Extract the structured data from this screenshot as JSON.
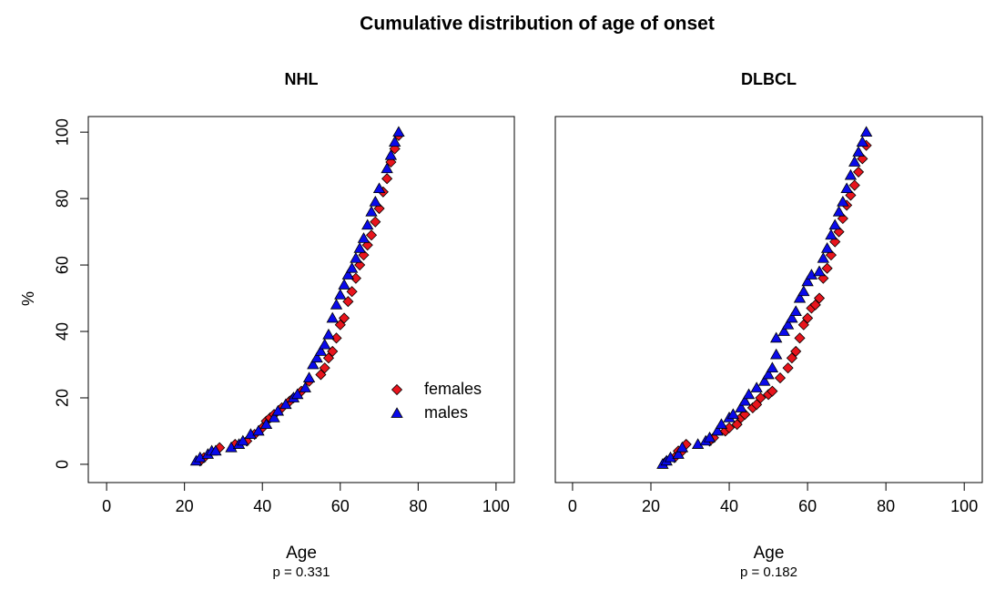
{
  "title": "Cumulative distribution of age of onset",
  "chart_data": [
    {
      "type": "scatter",
      "title": "NHL",
      "x_label": "Age",
      "y_label": "%",
      "annotation": "p = 0.331",
      "xlim": [
        -4.7,
        104.7
      ],
      "ylim": [
        -5.5,
        104.7
      ],
      "xticks": [
        0,
        20,
        40,
        60,
        80,
        100
      ],
      "yticks": [
        0,
        20,
        40,
        60,
        80,
        100
      ],
      "legend": "bottom-right",
      "series": [
        {
          "name": "females",
          "color": "#e8141c",
          "marker": "diamond",
          "x": [
            24,
            25,
            29,
            33,
            36,
            38,
            40,
            41,
            42,
            43,
            45,
            47,
            48,
            50,
            52,
            55,
            56,
            57,
            58,
            59,
            60,
            61,
            62,
            63,
            64,
            65,
            66,
            67,
            68,
            69,
            70,
            71,
            72,
            73,
            74,
            75
          ],
          "values": [
            1,
            2,
            5,
            6,
            7,
            9,
            11,
            13,
            14,
            15,
            17,
            19,
            20,
            22,
            25,
            27,
            29,
            32,
            34,
            38,
            42,
            44,
            49,
            52,
            56,
            60,
            63,
            66,
            69,
            73,
            77,
            82,
            86,
            91,
            95,
            99
          ]
        },
        {
          "name": "males",
          "color": "#0a0aeb",
          "marker": "triangle",
          "x": [
            23,
            24,
            26,
            27,
            28,
            32,
            34,
            35,
            37,
            39,
            41,
            43,
            44,
            46,
            48,
            49,
            51,
            52,
            53,
            54,
            55,
            56,
            57,
            58,
            59,
            60,
            61,
            62,
            63,
            64,
            65,
            66,
            67,
            68,
            69,
            70,
            72,
            73,
            74,
            75
          ],
          "values": [
            1,
            2,
            3,
            4,
            4,
            5,
            6,
            7,
            9,
            10,
            12,
            14,
            16,
            18,
            20,
            21,
            23,
            26,
            30,
            32,
            34,
            36,
            39,
            44,
            48,
            51,
            54,
            57,
            59,
            62,
            65,
            68,
            72,
            76,
            79,
            83,
            89,
            93,
            97,
            100
          ]
        }
      ]
    },
    {
      "type": "scatter",
      "title": "DLBCL",
      "x_label": "Age",
      "annotation": "p = 0.182",
      "xlim": [
        -4.4,
        104.6
      ],
      "ylim": [
        -5.5,
        104.7
      ],
      "xticks": [
        0,
        20,
        40,
        60,
        80,
        100
      ],
      "series": [
        {
          "color": "#e8141c",
          "marker": "diamond",
          "x": [
            24,
            26,
            27,
            28,
            29,
            35,
            36,
            39,
            40,
            42,
            43,
            44,
            46,
            47,
            48,
            50,
            51,
            53,
            55,
            56,
            57,
            58,
            59,
            60,
            61,
            62,
            63,
            64,
            65,
            66,
            67,
            68,
            69,
            70,
            71,
            72,
            73,
            74,
            75
          ],
          "values": [
            1,
            2,
            4,
            4,
            6,
            7,
            8,
            10,
            11,
            12,
            14,
            15,
            17,
            18,
            20,
            21,
            22,
            26,
            29,
            32,
            34,
            38,
            42,
            44,
            47,
            48,
            50,
            56,
            59,
            63,
            67,
            70,
            74,
            78,
            81,
            84,
            88,
            92,
            96
          ]
        },
        {
          "color": "#0a0aeb",
          "marker": "triangle",
          "x": [
            23,
            24,
            25,
            27,
            28,
            32,
            34,
            35,
            37,
            38,
            40,
            41,
            43,
            44,
            45,
            47,
            49,
            50,
            51,
            52,
            52,
            54,
            55,
            56,
            57,
            58,
            59,
            60,
            61,
            63,
            64,
            65,
            66,
            67,
            68,
            69,
            70,
            71,
            72,
            73,
            74,
            75
          ],
          "values": [
            0,
            1,
            2,
            3,
            5,
            6,
            7,
            8,
            10,
            12,
            14,
            15,
            17,
            19,
            21,
            23,
            25,
            27,
            29,
            33,
            38,
            40,
            42,
            44,
            46,
            50,
            52,
            55,
            57,
            58,
            62,
            65,
            69,
            72,
            76,
            79,
            83,
            87,
            91,
            94,
            97,
            100
          ]
        }
      ]
    }
  ]
}
